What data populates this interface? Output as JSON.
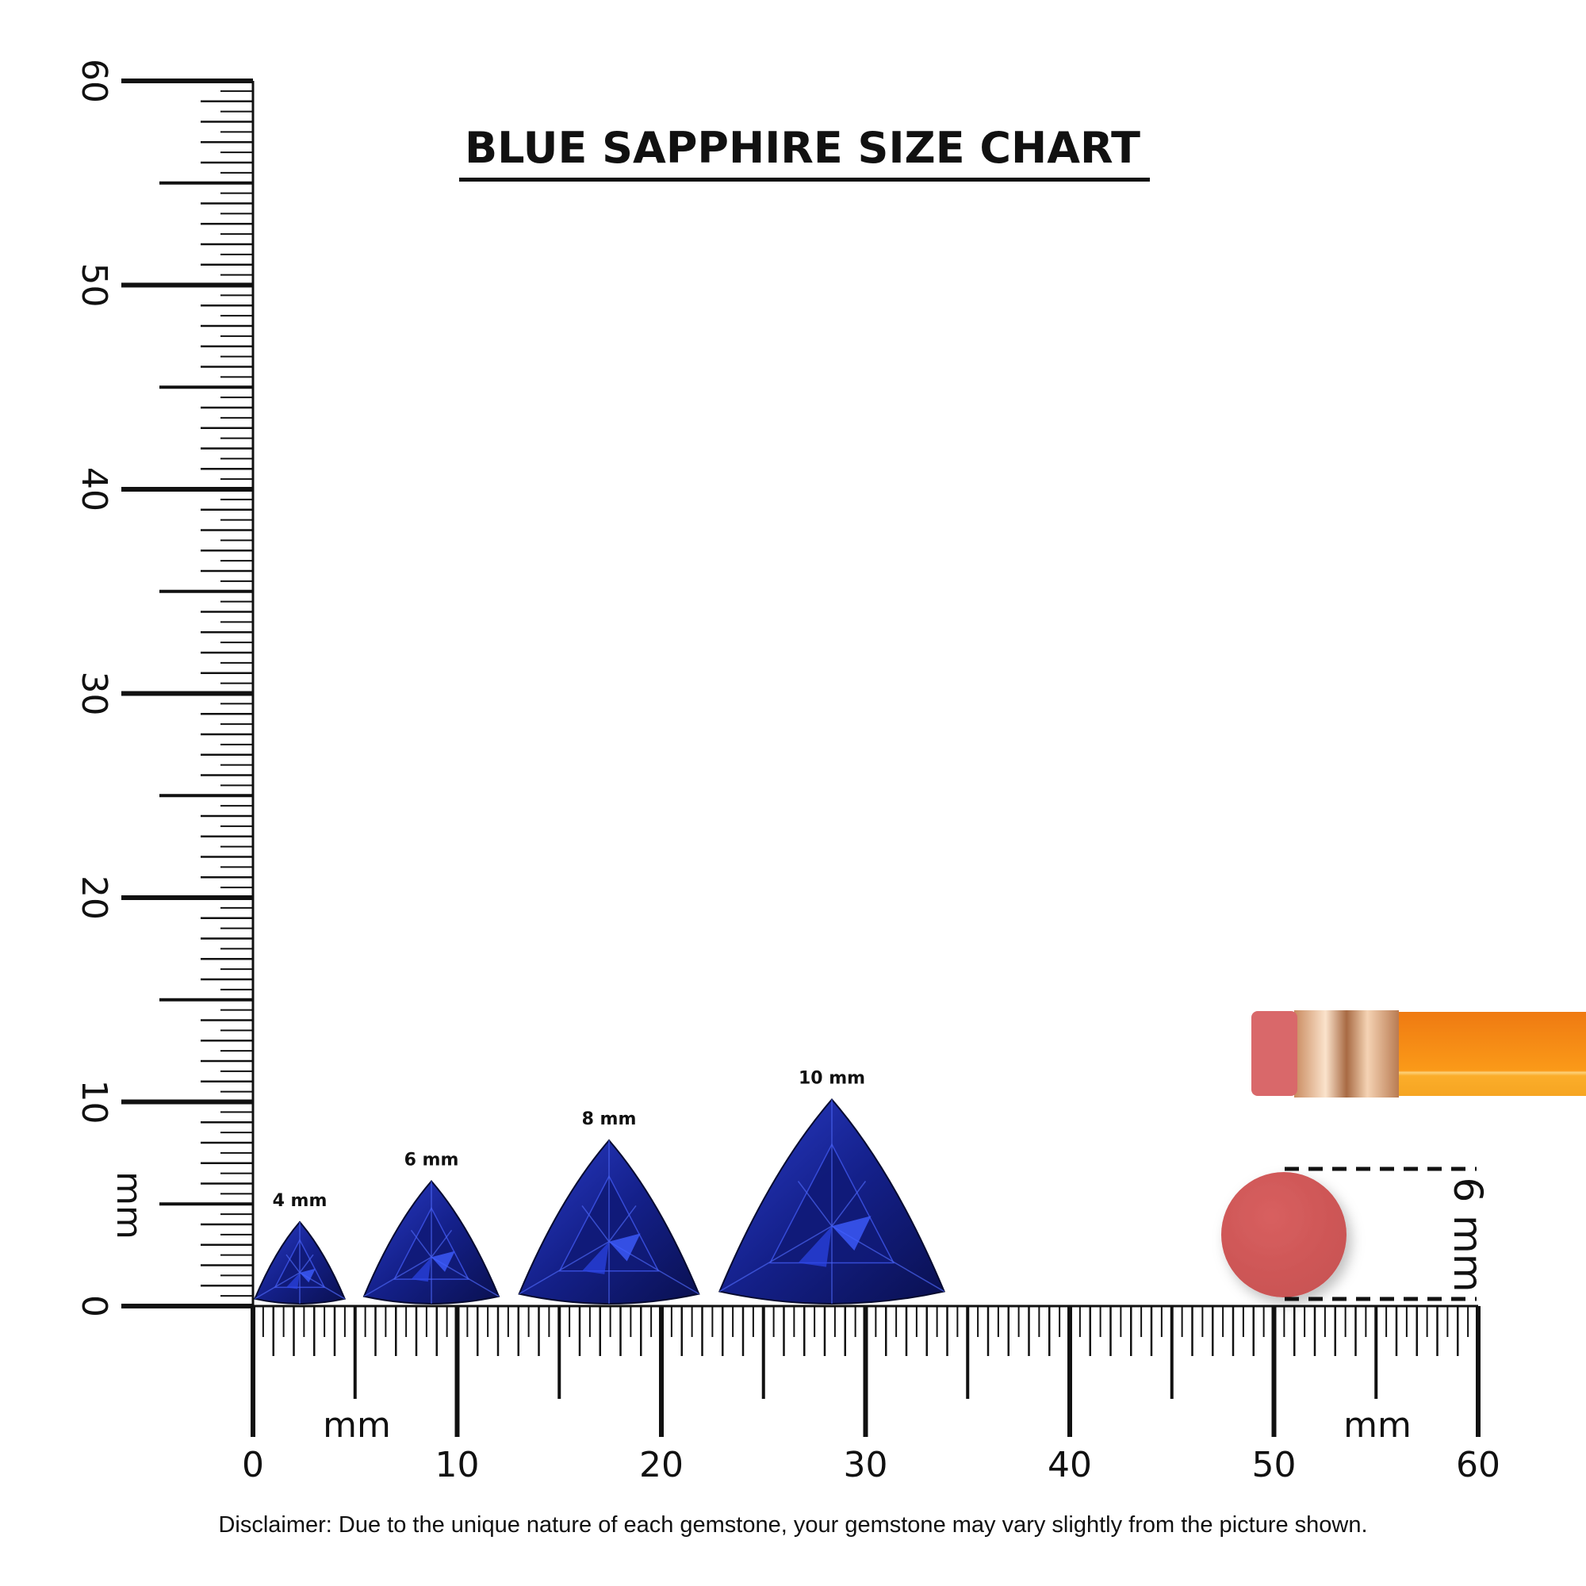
{
  "title": "BLUE SAPPHIRE SIZE CHART",
  "unit_label": "mm",
  "vertical_ruler": {
    "labels": [
      "0",
      "10",
      "20",
      "30",
      "40",
      "50",
      "60"
    ],
    "range_mm": [
      0,
      60
    ]
  },
  "horizontal_ruler": {
    "labels": [
      "0",
      "10",
      "20",
      "30",
      "40",
      "50",
      "60"
    ],
    "range_mm": [
      0,
      60
    ]
  },
  "gems": [
    {
      "label": "4 mm",
      "size_mm": 4
    },
    {
      "label": "6 mm",
      "size_mm": 6
    },
    {
      "label": "8 mm",
      "size_mm": 8
    },
    {
      "label": "10 mm",
      "size_mm": 10
    }
  ],
  "reference": {
    "label": "6 mm",
    "object": "pencil eraser",
    "size_mm": 6
  },
  "colors": {
    "gem": "#1f2fa8",
    "gem_dark": "#0a0f45",
    "eraser": "#d05a5a",
    "pencil": "#f7941d",
    "ferrule": "#d9a27a"
  },
  "disclaimer": "Disclaimer: Due to the unique nature of each gemstone, your gemstone may vary slightly from the picture shown."
}
